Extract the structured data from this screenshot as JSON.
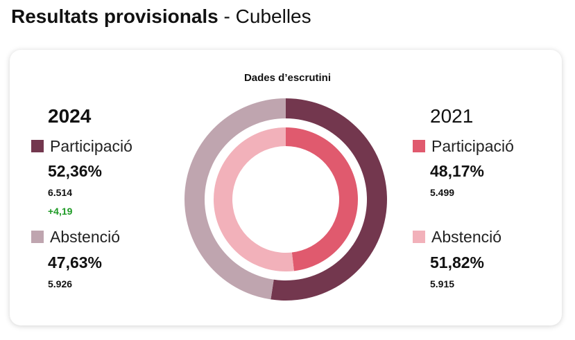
{
  "header": {
    "title_bold": "Resultats provisionals",
    "separator": " - ",
    "place": "Cubelles"
  },
  "colors": {
    "participacio_2024": "#73374e",
    "abstencio_2024": "#bfa5af",
    "participacio_2021": "#e05a6e",
    "abstencio_2021": "#f2b1ba",
    "delta_positive": "#1e9a25"
  },
  "chart_data": {
    "type": "pie",
    "title": "Dades d’escrutini",
    "rings": [
      {
        "name": "2024",
        "ring": "outer",
        "slices": [
          {
            "label": "Participació",
            "value": 52.36,
            "display": "52,36%",
            "count": "6.514",
            "delta": "+4,19"
          },
          {
            "label": "Abstenció",
            "value": 47.63,
            "display": "47,63%",
            "count": "5.926"
          }
        ]
      },
      {
        "name": "2021",
        "ring": "inner",
        "slices": [
          {
            "label": "Participació",
            "value": 48.17,
            "display": "48,17%",
            "count": "5.499"
          },
          {
            "label": "Abstenció",
            "value": 51.82,
            "display": "51,82%",
            "count": "5.915"
          }
        ]
      }
    ]
  }
}
